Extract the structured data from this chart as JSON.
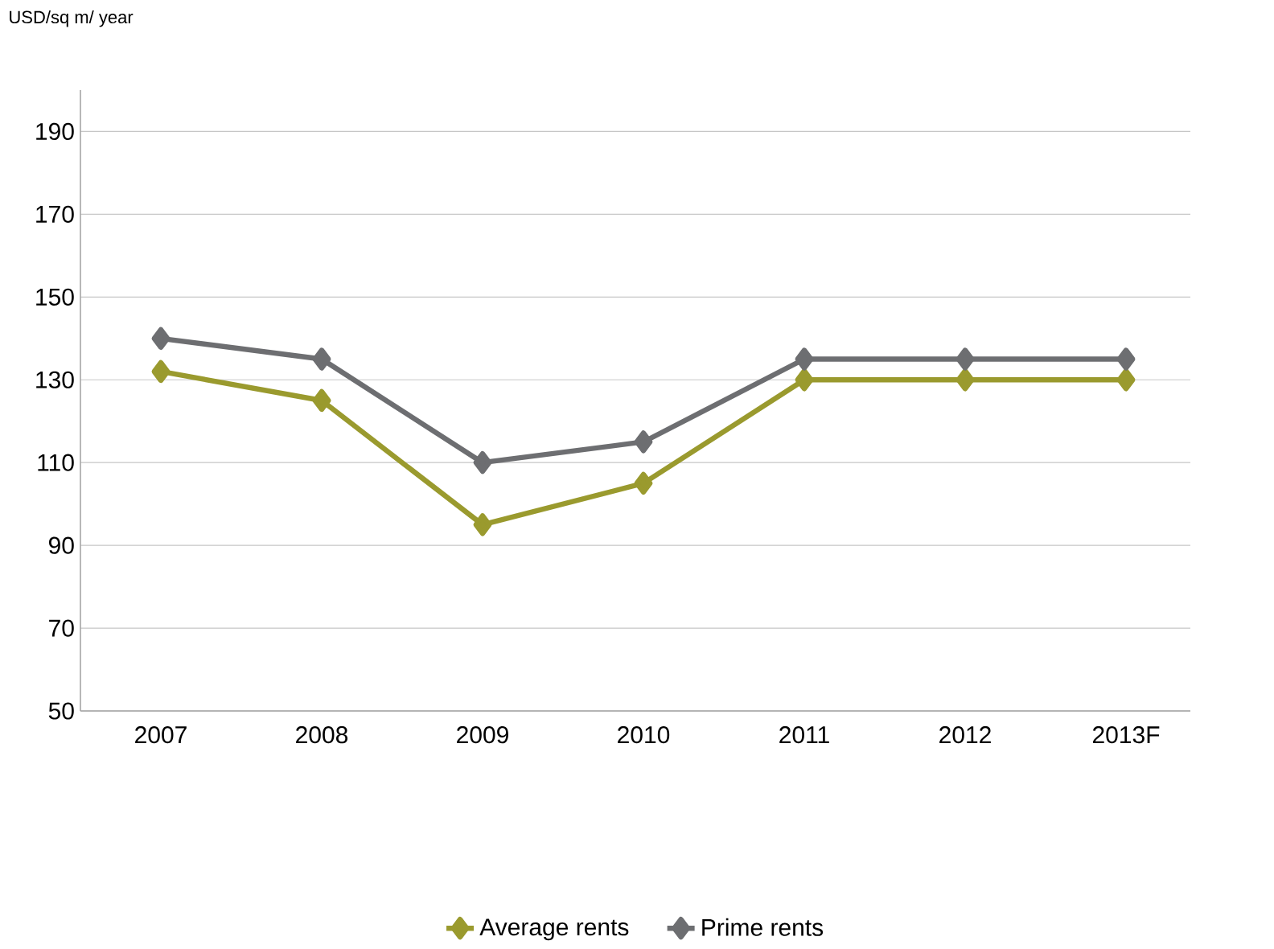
{
  "chart_data": {
    "type": "line",
    "ylabel": "USD/sq m/ year",
    "categories": [
      "2007",
      "2008",
      "2009",
      "2010",
      "2011",
      "2012",
      "2013F"
    ],
    "series": [
      {
        "name": "Average rents",
        "color": "#9a9a2e",
        "values": [
          132,
          125,
          95,
          105,
          130,
          130,
          130
        ]
      },
      {
        "name": "Prime rents",
        "color": "#6d6e71",
        "values": [
          140,
          135,
          110,
          115,
          135,
          135,
          135
        ]
      }
    ],
    "ylim": [
      50,
      200
    ],
    "yticks": [
      50,
      70,
      90,
      110,
      130,
      150,
      170,
      190
    ],
    "grid": "y",
    "legend": "bottom",
    "marker": "diamond",
    "line_style": "solid"
  }
}
